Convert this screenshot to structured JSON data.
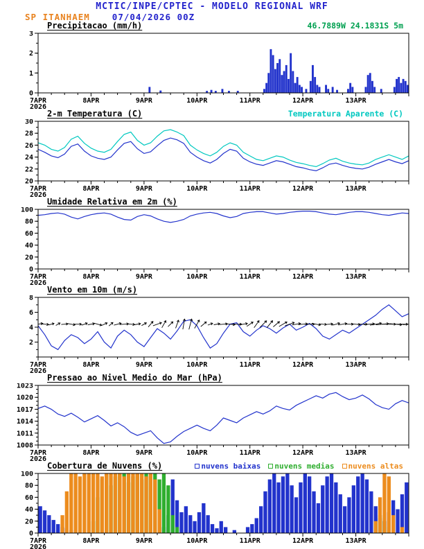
{
  "header": {
    "title": "MCTIC/INPE/CPTEC - MODELO REGIONAL WRF",
    "station": "SP ITANHAEM",
    "run_datetime": "07/04/2026 00Z",
    "colors": {
      "title": "#2323cc",
      "station": "#e8821e",
      "run_datetime": "#2323cc"
    }
  },
  "time_axis": {
    "start_label": "7APR",
    "start_year": "2026",
    "day_labels": [
      "8APR",
      "9APR",
      "10APR",
      "11APR",
      "12APR",
      "13APR"
    ],
    "hours_total": 168,
    "major_tick_hours": 24,
    "minor_tick_hours": 6
  },
  "chart_data": [
    {
      "id": "precipitation",
      "type": "bar",
      "title": "Precipitacao (mm/h)",
      "right_label": {
        "text": "46.7889W 24.1831S 5m",
        "color": "#00a050"
      },
      "ylim": [
        0,
        3
      ],
      "yticks": [
        0,
        1,
        2,
        3
      ],
      "yminor_step": 0.5,
      "bar_color": "#2233cc",
      "slot_hours": 1,
      "points_hour_value": [
        [
          50,
          0.3
        ],
        [
          55,
          0.12
        ],
        [
          76,
          0.1
        ],
        [
          78,
          0.15
        ],
        [
          80,
          0.1
        ],
        [
          83,
          0.2
        ],
        [
          86,
          0.1
        ],
        [
          90,
          0.1
        ],
        [
          102,
          0.2
        ],
        [
          103,
          0.5
        ],
        [
          104,
          1.0
        ],
        [
          105,
          2.2
        ],
        [
          106,
          1.9
        ],
        [
          107,
          1.2
        ],
        [
          108,
          1.5
        ],
        [
          109,
          1.7
        ],
        [
          110,
          0.9
        ],
        [
          111,
          1.1
        ],
        [
          112,
          1.4
        ],
        [
          113,
          0.7
        ],
        [
          114,
          2.0
        ],
        [
          115,
          1.1
        ],
        [
          116,
          0.5
        ],
        [
          117,
          0.8
        ],
        [
          118,
          0.4
        ],
        [
          119,
          0.3
        ],
        [
          121,
          0.2
        ],
        [
          123,
          0.6
        ],
        [
          124,
          1.4
        ],
        [
          125,
          0.8
        ],
        [
          126,
          0.4
        ],
        [
          127,
          0.3
        ],
        [
          130,
          0.4
        ],
        [
          131,
          0.2
        ],
        [
          133,
          0.3
        ],
        [
          135,
          0.15
        ],
        [
          140,
          0.2
        ],
        [
          141,
          0.5
        ],
        [
          142,
          0.3
        ],
        [
          148,
          0.3
        ],
        [
          149,
          0.9
        ],
        [
          150,
          1.0
        ],
        [
          151,
          0.6
        ],
        [
          152,
          0.3
        ],
        [
          155,
          0.2
        ],
        [
          161,
          0.3
        ],
        [
          162,
          0.7
        ],
        [
          163,
          0.8
        ],
        [
          164,
          0.5
        ],
        [
          165,
          0.7
        ],
        [
          166,
          0.6
        ],
        [
          167,
          0.4
        ]
      ]
    },
    {
      "id": "temperature-2m",
      "type": "line",
      "title": "2-m Temperatura (C)",
      "right_label": {
        "text": "Temperatura Aparente (C)",
        "color": "#00c8c0"
      },
      "ylim": [
        20,
        30
      ],
      "yticks": [
        20,
        22,
        24,
        26,
        28,
        30
      ],
      "yminor_step": 1,
      "x_step_hours": 3,
      "series": [
        {
          "name": "2-m Temperatura",
          "color": "#2233cc",
          "values": [
            25.3,
            24.8,
            24.2,
            23.9,
            24.5,
            25.8,
            26.2,
            25.0,
            24.2,
            23.8,
            23.6,
            24.0,
            25.2,
            26.3,
            26.6,
            25.4,
            24.6,
            24.9,
            25.9,
            26.8,
            27.2,
            26.9,
            26.3,
            24.8,
            24.0,
            23.4,
            23.0,
            23.6,
            24.6,
            25.3,
            25.0,
            23.8,
            23.2,
            22.8,
            22.6,
            23.0,
            23.4,
            23.2,
            22.8,
            22.4,
            22.2,
            21.9,
            21.7,
            22.2,
            22.8,
            23.0,
            22.6,
            22.3,
            22.1,
            22.0,
            22.3,
            22.8,
            23.2,
            23.6,
            23.2,
            22.9,
            23.4
          ]
        },
        {
          "name": "Temperatura Aparente",
          "color": "#00c8c0",
          "values": [
            26.4,
            26.0,
            25.3,
            25.0,
            25.6,
            27.0,
            27.5,
            26.3,
            25.5,
            25.0,
            24.8,
            25.3,
            26.6,
            27.8,
            28.2,
            26.8,
            26.0,
            26.4,
            27.5,
            28.4,
            28.6,
            28.2,
            27.6,
            26.0,
            25.2,
            24.6,
            24.2,
            24.8,
            25.8,
            26.4,
            26.0,
            24.8,
            24.2,
            23.6,
            23.4,
            23.8,
            24.2,
            24.0,
            23.5,
            23.1,
            22.9,
            22.6,
            22.4,
            22.9,
            23.5,
            23.8,
            23.3,
            23.0,
            22.8,
            22.7,
            23.0,
            23.6,
            24.0,
            24.4,
            24.0,
            23.6,
            24.2
          ]
        }
      ]
    },
    {
      "id": "relative-humidity-2m",
      "type": "line",
      "title": "Umidade Relativa em 2m (%)",
      "ylim": [
        0,
        100
      ],
      "yticks": [
        0,
        20,
        40,
        60,
        80,
        100
      ],
      "yminor_step": 10,
      "x_step_hours": 3,
      "series": [
        {
          "name": "Umidade Relativa",
          "color": "#2233cc",
          "values": [
            90,
            91,
            93,
            94,
            92,
            87,
            84,
            88,
            91,
            93,
            94,
            92,
            87,
            83,
            82,
            88,
            91,
            89,
            84,
            80,
            78,
            80,
            83,
            89,
            92,
            94,
            95,
            93,
            89,
            86,
            88,
            93,
            95,
            96,
            96,
            94,
            92,
            93,
            95,
            96,
            97,
            97,
            96,
            94,
            92,
            91,
            93,
            95,
            96,
            96,
            95,
            93,
            91,
            90,
            92,
            94,
            93
          ]
        }
      ]
    },
    {
      "id": "wind-10m",
      "type": "line",
      "title": "Vento em 10m (m/s)",
      "ylim": [
        0,
        8
      ],
      "yticks": [
        2,
        4,
        6,
        8
      ],
      "yminor_step": 1,
      "x_step_hours": 3,
      "series": [
        {
          "name": "Velocidade do vento",
          "color": "#2233cc",
          "values": [
            4.2,
            3.0,
            1.5,
            1.0,
            2.2,
            3.0,
            2.6,
            1.8,
            2.4,
            3.4,
            2.0,
            1.2,
            2.8,
            3.6,
            3.0,
            2.0,
            1.4,
            2.6,
            3.8,
            3.2,
            2.4,
            3.5,
            4.8,
            5.0,
            4.2,
            2.6,
            1.2,
            1.8,
            3.2,
            4.4,
            4.6,
            3.4,
            2.8,
            3.6,
            4.2,
            3.8,
            3.2,
            3.9,
            4.4,
            3.6,
            4.0,
            4.5,
            3.8,
            2.8,
            2.4,
            3.0,
            3.6,
            3.2,
            3.8,
            4.4,
            5.0,
            5.6,
            6.4,
            7.0,
            6.2,
            5.4,
            5.8
          ]
        }
      ],
      "wind_vectors": {
        "color": "#000000",
        "anchor_value": 4.4,
        "x_step_hours": 3,
        "angles_deg": [
          10,
          -5,
          15,
          30,
          5,
          -10,
          0,
          20,
          10,
          -15,
          25,
          40,
          15,
          5,
          -5,
          10,
          30,
          50,
          20,
          60,
          45,
          70,
          80,
          75,
          60,
          40,
          20,
          10,
          5,
          -5,
          0,
          10,
          35,
          55,
          45,
          50,
          40,
          30,
          20,
          10,
          5,
          0,
          -10,
          -5,
          5,
          15,
          10,
          0,
          -5,
          0,
          5,
          10,
          5,
          0,
          -5,
          0,
          5
        ]
      }
    },
    {
      "id": "mean-sea-level-pressure",
      "type": "line",
      "title": "Pressao ao Nivel Medio do Mar (hPa)",
      "ylim": [
        1008,
        1023
      ],
      "yticks": [
        1008,
        1011,
        1014,
        1017,
        1020,
        1023
      ],
      "yminor_step": 1,
      "x_step_hours": 3,
      "series": [
        {
          "name": "Pressao ao nivel medio do mar",
          "color": "#2233cc",
          "values": [
            1017.2,
            1017.8,
            1017.0,
            1015.8,
            1015.2,
            1016.0,
            1015.0,
            1013.8,
            1014.6,
            1015.4,
            1014.2,
            1012.8,
            1013.6,
            1012.6,
            1011.2,
            1010.4,
            1011.0,
            1011.6,
            1009.8,
            1008.4,
            1008.8,
            1010.2,
            1011.4,
            1012.2,
            1013.0,
            1012.2,
            1011.6,
            1013.0,
            1014.8,
            1014.2,
            1013.6,
            1014.8,
            1015.6,
            1016.4,
            1015.8,
            1016.6,
            1017.8,
            1017.2,
            1016.8,
            1018.0,
            1018.8,
            1019.6,
            1020.4,
            1019.8,
            1020.8,
            1021.2,
            1020.2,
            1019.4,
            1019.8,
            1020.6,
            1019.6,
            1018.2,
            1017.4,
            1017.0,
            1018.4,
            1019.2,
            1018.6
          ]
        }
      ]
    },
    {
      "id": "cloud-cover",
      "type": "bar",
      "title": "Cobertura de Nuvens (%)",
      "legend": [
        {
          "label": "nuvens baixas",
          "color": "#2233cc"
        },
        {
          "label": "nuvens medias",
          "color": "#2fae2f"
        },
        {
          "label": "nuvens altas",
          "color": "#ec8c1e"
        }
      ],
      "ylim": [
        0,
        100
      ],
      "yticks": [
        0,
        20,
        40,
        60,
        80,
        100
      ],
      "yminor_step": 10,
      "slot_hours": 2,
      "series": [
        {
          "name": "nuvens baixas",
          "color": "#2233cc",
          "values": [
            45,
            38,
            30,
            22,
            15,
            10,
            8,
            5,
            0,
            0,
            0,
            0,
            0,
            0,
            0,
            0,
            0,
            0,
            0,
            0,
            0,
            0,
            0,
            0,
            0,
            0,
            0,
            0,
            10,
            30,
            90,
            55,
            35,
            45,
            30,
            20,
            35,
            50,
            30,
            15,
            8,
            20,
            10,
            0,
            5,
            0,
            0,
            10,
            15,
            25,
            45,
            70,
            90,
            100,
            85,
            95,
            100,
            80,
            60,
            85,
            100,
            95,
            70,
            50,
            80,
            95,
            100,
            85,
            65,
            45,
            60,
            80,
            95,
            100,
            90,
            70,
            45,
            25,
            20,
            35,
            55,
            40,
            65,
            85
          ]
        },
        {
          "name": "nuvens medias",
          "color": "#2fae2f",
          "values": [
            0,
            0,
            0,
            0,
            0,
            0,
            0,
            0,
            0,
            0,
            0,
            0,
            20,
            60,
            90,
            100,
            80,
            95,
            100,
            100,
            85,
            95,
            100,
            90,
            100,
            95,
            100,
            90,
            100,
            80,
            30,
            10,
            0,
            0,
            0,
            0,
            0,
            0,
            0,
            0,
            0,
            0,
            0,
            0,
            0,
            0,
            0,
            0,
            0,
            0,
            0,
            0,
            0,
            0,
            0,
            0,
            0,
            0,
            0,
            0,
            0,
            0,
            0,
            0,
            0,
            0,
            0,
            0,
            0,
            0,
            0,
            0,
            0,
            0,
            0,
            0,
            15,
            30,
            20,
            10,
            0,
            0,
            0,
            0
          ]
        },
        {
          "name": "nuvens altas",
          "color": "#ec8c1e",
          "values": [
            0,
            0,
            0,
            0,
            0,
            30,
            70,
            100,
            100,
            95,
            100,
            100,
            100,
            100,
            95,
            100,
            100,
            100,
            100,
            95,
            100,
            100,
            100,
            100,
            95,
            100,
            90,
            40,
            0,
            0,
            0,
            0,
            0,
            0,
            0,
            0,
            0,
            0,
            0,
            0,
            0,
            0,
            0,
            0,
            0,
            0,
            0,
            0,
            0,
            0,
            0,
            0,
            0,
            0,
            0,
            0,
            0,
            0,
            0,
            0,
            0,
            0,
            0,
            0,
            0,
            0,
            0,
            0,
            0,
            0,
            0,
            0,
            0,
            0,
            0,
            0,
            20,
            60,
            100,
            95,
            30,
            0,
            10,
            0
          ]
        }
      ]
    }
  ]
}
